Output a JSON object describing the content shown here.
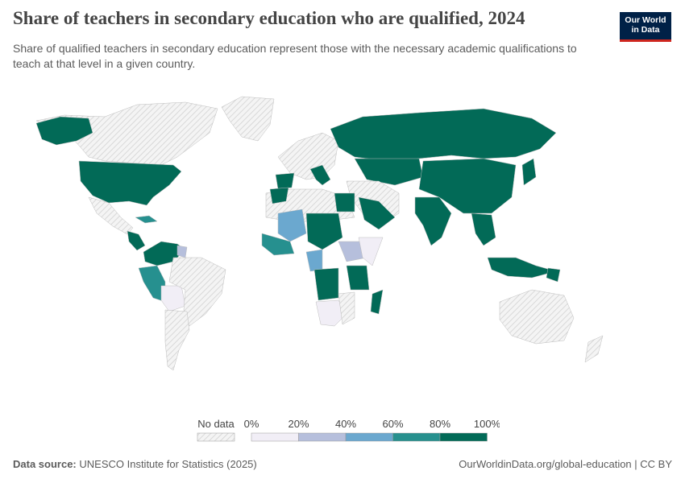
{
  "title": "Share of teachers in secondary education who are qualified, 2024",
  "subtitle": "Share of qualified teachers in secondary education represent those with the necessary academic qualifications to teach at that level in a given country.",
  "logo": {
    "line1": "Our World",
    "line2": "in Data"
  },
  "legend": {
    "no_data_label": "No data",
    "ticks": [
      "0%",
      "20%",
      "40%",
      "60%",
      "80%",
      "100%"
    ],
    "colors": [
      "#f1eef6",
      "#b6bfdc",
      "#6ba8cf",
      "#27908e",
      "#026a57"
    ],
    "no_data_color": "#ebebeb"
  },
  "footer": {
    "source_label": "Data source:",
    "source": "UNESCO Institute for Statistics (2025)",
    "right": "OurWorldinData.org/global-education | CC BY"
  }
}
